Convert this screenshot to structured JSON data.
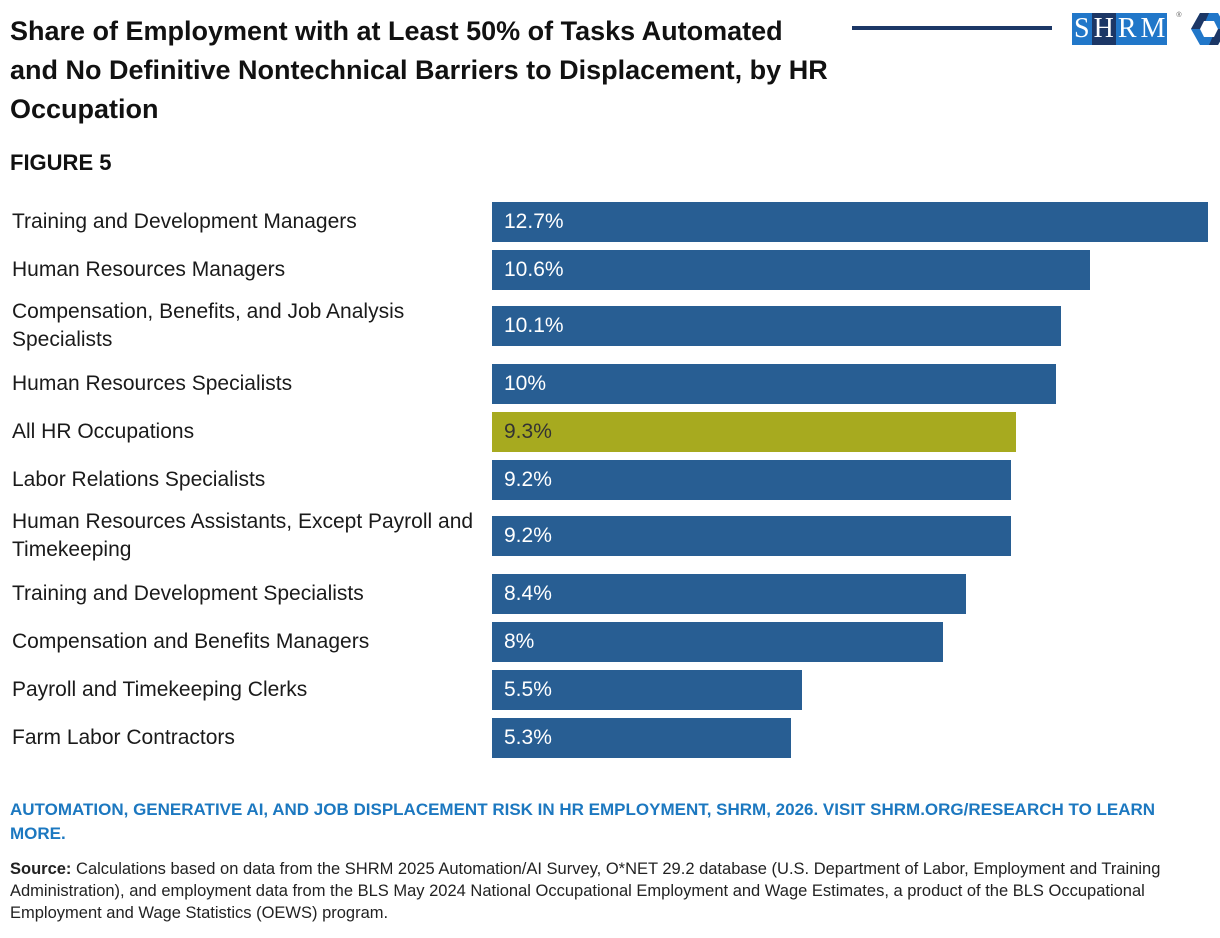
{
  "header": {
    "title": "Share of Employment with at Least 50% of Tasks Automated and No Definitive Nontechnical Barriers to Displacement, by HR Occupation",
    "figure_label": "FIGURE 5",
    "logo_text": "SHRM"
  },
  "chart_data": {
    "type": "bar",
    "orientation": "horizontal",
    "title": "Share of Employment with at Least 50% of Tasks Automated and No Definitive Nontechnical Barriers to Displacement, by HR Occupation",
    "categories": [
      "Training and Development Managers",
      "Human Resources Managers",
      "Compensation, Benefits, and Job Analysis Specialists",
      "Human Resources Specialists",
      "All HR Occupations",
      "Labor Relations Specialists",
      "Human Resources Assistants, Except Payroll and Timekeeping",
      "Training and Development Specialists",
      "Compensation and Benefits Managers",
      "Payroll and Timekeeping Clerks",
      "Farm Labor Contractors"
    ],
    "values": [
      12.7,
      10.6,
      10.1,
      10,
      9.3,
      9.2,
      9.2,
      8.4,
      8,
      5.5,
      5.3
    ],
    "value_labels": [
      "12.7%",
      "10.6%",
      "10.1%",
      "10%",
      "9.3%",
      "9.2%",
      "9.2%",
      "8.4%",
      "8%",
      "5.5%",
      "5.3%"
    ],
    "highlight_index": 4,
    "colors": {
      "bar": "#285e93",
      "highlight": "#a7aa1f"
    },
    "xlim": [
      0,
      12.7
    ],
    "grid": false
  },
  "footer": {
    "cta": "AUTOMATION, GENERATIVE AI, AND JOB DISPLACEMENT RISK IN HR EMPLOYMENT, SHRM, 2026. VISIT SHRM.ORG/RESEARCH TO LEARN MORE.",
    "source_label": "Source:",
    "source_text": " Calculations based on data from the SHRM 2025 Automation/AI Survey, O*NET 29.2 database (U.S. Department of Labor, Employment and Training Administration), and employment data from the BLS May 2024 National Occupational Employment and Wage Estimates, a product of the BLS Occupational Employment and Wage Statistics (OEWS) program."
  }
}
